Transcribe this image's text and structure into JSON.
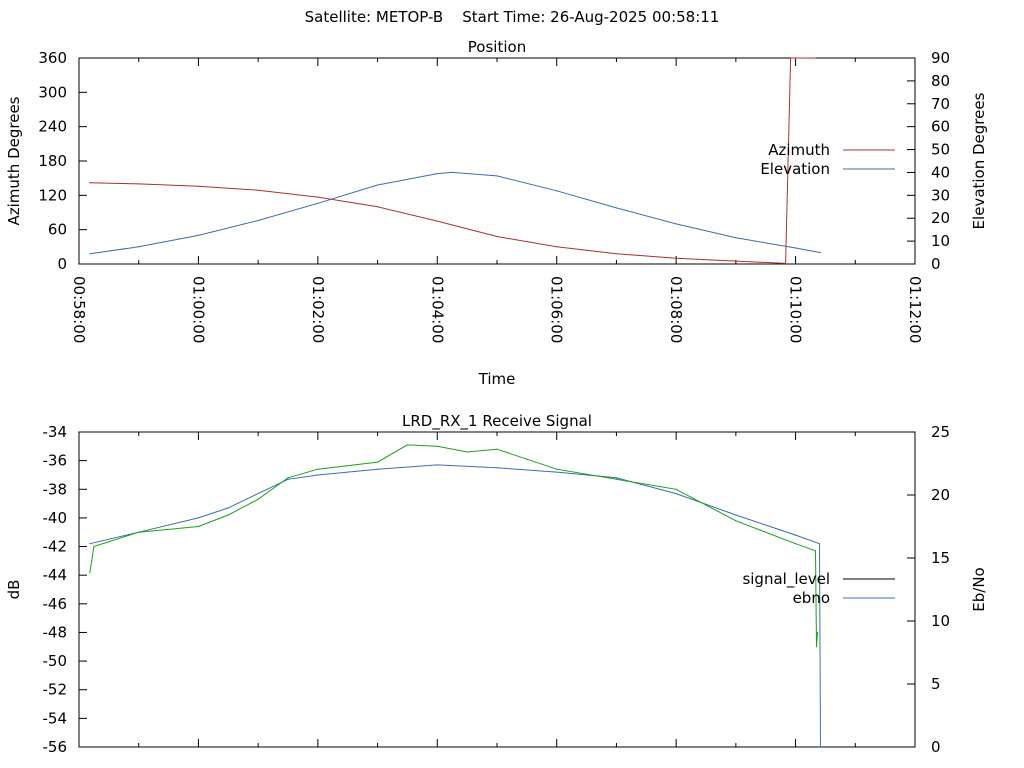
{
  "header": {
    "title": "Satellite: METOP-B    Start Time: 26-Aug-2025 00:58:11"
  },
  "chart_data": [
    {
      "type": "line",
      "title": "Position",
      "xlabel": "Time",
      "ylabel": "Azimuth Degrees",
      "y2label": "Elevation Degrees",
      "x_ticks": [
        "00:58:00",
        "01:00:00",
        "01:02:00",
        "01:04:00",
        "01:06:00",
        "01:08:00",
        "01:10:00",
        "01:12:00"
      ],
      "xlim": [
        "00:58:00",
        "01:12:00"
      ],
      "ylim": [
        0,
        360
      ],
      "y_ticks": [
        0,
        60,
        120,
        180,
        240,
        300,
        360
      ],
      "y2lim": [
        0,
        90
      ],
      "y2_ticks": [
        0,
        10,
        20,
        30,
        40,
        50,
        60,
        70,
        80,
        90
      ],
      "legend_position": "right",
      "series": [
        {
          "name": "Azimuth",
          "axis": "left",
          "color": "#a83232",
          "x": [
            "00:58:11",
            "00:59:00",
            "01:00:00",
            "01:01:00",
            "01:02:00",
            "01:03:00",
            "01:04:00",
            "01:05:00",
            "01:06:00",
            "01:07:00",
            "01:08:00",
            "01:09:00",
            "01:09:50",
            "01:09:55",
            "01:10:20"
          ],
          "y": [
            142,
            140,
            136,
            129,
            117,
            100,
            75,
            48,
            30,
            18,
            10,
            5,
            1,
            360,
            360
          ]
        },
        {
          "name": "Elevation",
          "axis": "right",
          "color": "#3a6ea8",
          "x": [
            "00:58:11",
            "00:59:00",
            "01:00:00",
            "01:01:00",
            "01:02:00",
            "01:03:00",
            "01:04:00",
            "01:04:15",
            "01:05:00",
            "01:06:00",
            "01:07:00",
            "01:08:00",
            "01:09:00",
            "01:10:00",
            "01:10:25"
          ],
          "y": [
            4.5,
            7.5,
            12.5,
            19,
            26.5,
            34.5,
            39.5,
            40,
            38.5,
            32,
            24.5,
            17.5,
            11.5,
            7,
            5
          ]
        }
      ]
    },
    {
      "type": "line",
      "title": "LRD_RX_1 Receive Signal",
      "ylabel": "dB",
      "y2label": "Eb/No",
      "xlim": [
        "00:58:00",
        "01:12:00"
      ],
      "ylim": [
        -56,
        -34
      ],
      "y_ticks": [
        -56,
        -54,
        -52,
        -50,
        -48,
        -46,
        -44,
        -42,
        -40,
        -38,
        -36,
        -34
      ],
      "y2lim": [
        0,
        25
      ],
      "y2_ticks": [
        0,
        5,
        10,
        15,
        20,
        25
      ],
      "legend_position": "right",
      "series": [
        {
          "name": "signal_level",
          "axis": "left",
          "color": "#000000",
          "legend_only": true,
          "x": [],
          "y": []
        },
        {
          "name": "ebno",
          "axis": "left",
          "color": "#3a6ea8",
          "x": [
            "00:58:11",
            "00:59:00",
            "01:00:00",
            "01:00:30",
            "01:01:00",
            "01:01:30",
            "01:02:00",
            "01:03:00",
            "01:04:00",
            "01:05:00",
            "01:06:00",
            "01:07:00",
            "01:08:00",
            "01:09:00",
            "01:10:00",
            "01:10:24",
            "01:10:25"
          ],
          "y": [
            -41.8,
            -41,
            -40,
            -39.3,
            -38.3,
            -37.3,
            -37,
            -36.6,
            -36.3,
            -36.5,
            -36.8,
            -37.2,
            -38.3,
            -39.8,
            -41.2,
            -41.8,
            -56
          ]
        },
        {
          "name": "",
          "axis": "left",
          "color": "#1aa01a",
          "x": [
            "00:58:11",
            "00:58:15",
            "00:59:00",
            "01:00:00",
            "01:00:30",
            "01:01:00",
            "01:01:30",
            "01:02:00",
            "01:03:00",
            "01:03:30",
            "01:04:00",
            "01:04:30",
            "01:05:00",
            "01:05:30",
            "01:06:00",
            "01:07:00",
            "01:08:00",
            "01:09:00",
            "01:10:00",
            "01:10:20",
            "01:10:21",
            "01:10:22"
          ],
          "y": [
            -43.8,
            -42,
            -41,
            -40.6,
            -39.8,
            -38.7,
            -37.2,
            -36.6,
            -36.1,
            -34.9,
            -35,
            -35.4,
            -35.2,
            -35.9,
            -36.6,
            -37.3,
            -38,
            -40.2,
            -41.8,
            -42.3,
            -49,
            -48
          ]
        }
      ]
    }
  ]
}
